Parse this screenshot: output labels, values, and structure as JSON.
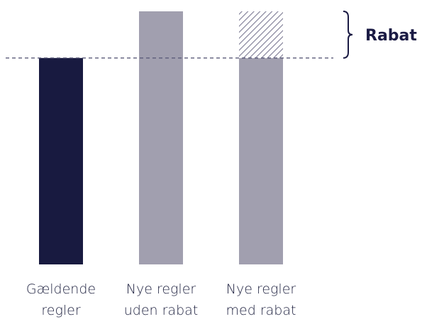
{
  "chart_data": {
    "type": "bar",
    "categories": [
      [
        "Gældende",
        "regler"
      ],
      [
        "Nye regler",
        "uden rabat"
      ],
      [
        "Nye regler",
        "med rabat"
      ]
    ],
    "values": [
      100,
      122.6,
      100
    ],
    "stacked_extra": [
      0,
      0,
      22.6
    ],
    "reference_line": 100,
    "annotation": "Rabat",
    "ylim": [
      0,
      122.6
    ],
    "grid": false,
    "legend": "none"
  },
  "colors": {
    "bar_current": "#181a40",
    "bar_new": "#a19faf",
    "hatch": "#7a7892",
    "reference_line": "#5b5b7a",
    "text": "#1f2240",
    "annotation": "#1b1b44"
  }
}
